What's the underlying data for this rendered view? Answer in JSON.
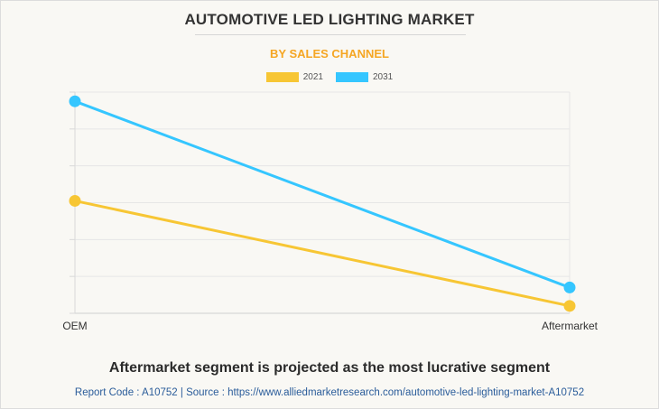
{
  "header": {
    "title": "AUTOMOTIVE LED LIGHTING MARKET",
    "subtitle": "BY SALES CHANNEL"
  },
  "colors": {
    "accent_orange": "#f5a623",
    "series_2021": "#f7c634",
    "series_2031": "#35c6ff",
    "footer_blue": "#2a5c9a"
  },
  "chart_data": {
    "type": "line",
    "categories": [
      "OEM",
      "Aftermarket"
    ],
    "series": [
      {
        "name": "2021",
        "values": [
          0.61,
          0.04
        ]
      },
      {
        "name": "2031",
        "values": [
          1.15,
          0.14
        ]
      }
    ],
    "ylim": [
      0,
      1.2
    ],
    "grid": true,
    "legend": "top-center",
    "y_axis_labels_shown": false
  },
  "caption": "Aftermarket segment is projected as the most lucrative segment",
  "footer": {
    "text": "Report Code : A10752  |  Source : https://www.alliedmarketresearch.com/automotive-led-lighting-market-A10752"
  }
}
